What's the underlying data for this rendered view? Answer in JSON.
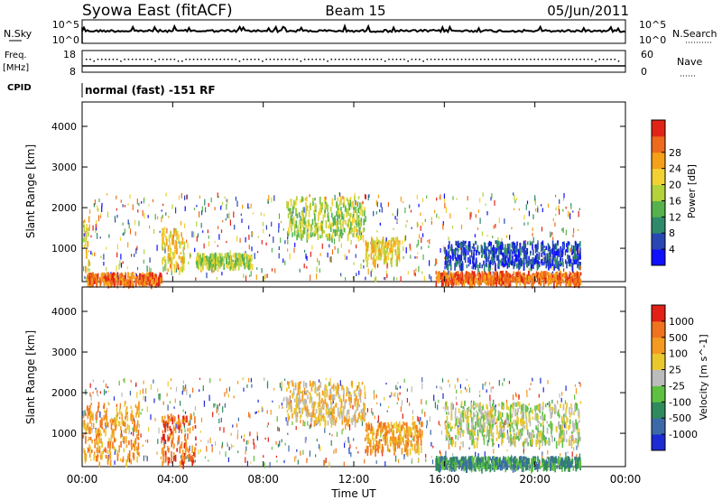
{
  "header": {
    "station": "Syowa East (fitACF)",
    "beam": "Beam 15",
    "date": "05/Jun/2011"
  },
  "status_panels": {
    "nsky": {
      "label": "N.Sky",
      "y_ticks": [
        "10^5",
        "10^0"
      ]
    },
    "nsearch": {
      "label": "N.Search",
      "y_ticks": [
        "10^5",
        "10^0"
      ]
    },
    "freq": {
      "label": "Freq.",
      "unit": "[MHz]",
      "y_ticks": [
        "18",
        "8"
      ]
    },
    "nave": {
      "label": "Nave",
      "y_ticks": [
        "60",
        "0"
      ]
    },
    "cpid": {
      "label": "CPID",
      "value": "normal (fast) -151 RF"
    }
  },
  "time_axis": {
    "label": "Time UT",
    "ticks": [
      "00:00",
      "04:00",
      "08:00",
      "12:00",
      "16:00",
      "20:00",
      "00:00"
    ],
    "range_hours": [
      0,
      24
    ]
  },
  "chart_data": [
    {
      "type": "heatmap",
      "quantity": "Power",
      "ylabel": "Slant Range [km]",
      "xlabel": "",
      "ylim": [
        180,
        4600
      ],
      "y_ticks": [
        1000,
        2000,
        3000,
        4000
      ],
      "colorbar": {
        "label": "Power [dB]",
        "ticks": [
          "4",
          "8",
          "12",
          "16",
          "20",
          "24",
          "28"
        ],
        "colors": [
          "#1010ff",
          "#2846b4",
          "#2e8a6a",
          "#56b24c",
          "#b4d23a",
          "#f2d233",
          "#f4a018",
          "#ee6a1c",
          "#e12418"
        ]
      },
      "regions": [
        {
          "t": [
            0.0,
            0.3
          ],
          "r": [
            250,
            1800
          ],
          "level": 5
        },
        {
          "t": [
            0.2,
            3.5
          ],
          "r": [
            180,
            420
          ],
          "level": 7
        },
        {
          "t": [
            3.5,
            4.5
          ],
          "r": [
            500,
            1500
          ],
          "level": 5
        },
        {
          "t": [
            5.0,
            7.5
          ],
          "r": [
            600,
            900
          ],
          "level": 4
        },
        {
          "t": [
            9.0,
            12.5
          ],
          "r": [
            1300,
            2300
          ],
          "level": 4
        },
        {
          "t": [
            12.5,
            14.0
          ],
          "r": [
            700,
            1300
          ],
          "level": 5
        },
        {
          "t": [
            15.6,
            22.0
          ],
          "r": [
            200,
            450
          ],
          "level": 7
        },
        {
          "t": [
            16.0,
            22.0
          ],
          "r": [
            600,
            1200
          ],
          "level": 1
        }
      ]
    },
    {
      "type": "heatmap",
      "quantity": "Velocity",
      "ylabel": "Slant Range [km]",
      "xlabel": "Time UT",
      "ylim": [
        180,
        4600
      ],
      "y_ticks": [
        1000,
        2000,
        3000,
        4000
      ],
      "colorbar": {
        "label": "Velocity [m s^-1]",
        "ticks": [
          "1000",
          "500",
          "100",
          "25",
          "-25",
          "-100",
          "-500",
          "-1000"
        ],
        "colors": [
          "#1c2bd4",
          "#3c6aa8",
          "#2f8a5c",
          "#5ec040",
          "#bcbcbc",
          "#e9c82e",
          "#f49a20",
          "#f0721e",
          "#e22016"
        ]
      },
      "regions": [
        {
          "t": [
            0.0,
            2.5
          ],
          "r": [
            300,
            1800
          ],
          "level": 6
        },
        {
          "t": [
            3.5,
            5.0
          ],
          "r": [
            300,
            1500
          ],
          "level": 7
        },
        {
          "t": [
            9.0,
            12.5
          ],
          "r": [
            1300,
            2300
          ],
          "level": 5
        },
        {
          "t": [
            12.5,
            15.0
          ],
          "r": [
            600,
            1300
          ],
          "level": 6
        },
        {
          "t": [
            15.6,
            22.0
          ],
          "r": [
            200,
            450
          ],
          "level": 2
        },
        {
          "t": [
            16.0,
            22.0
          ],
          "r": [
            800,
            1800
          ],
          "level": 4
        }
      ]
    }
  ]
}
